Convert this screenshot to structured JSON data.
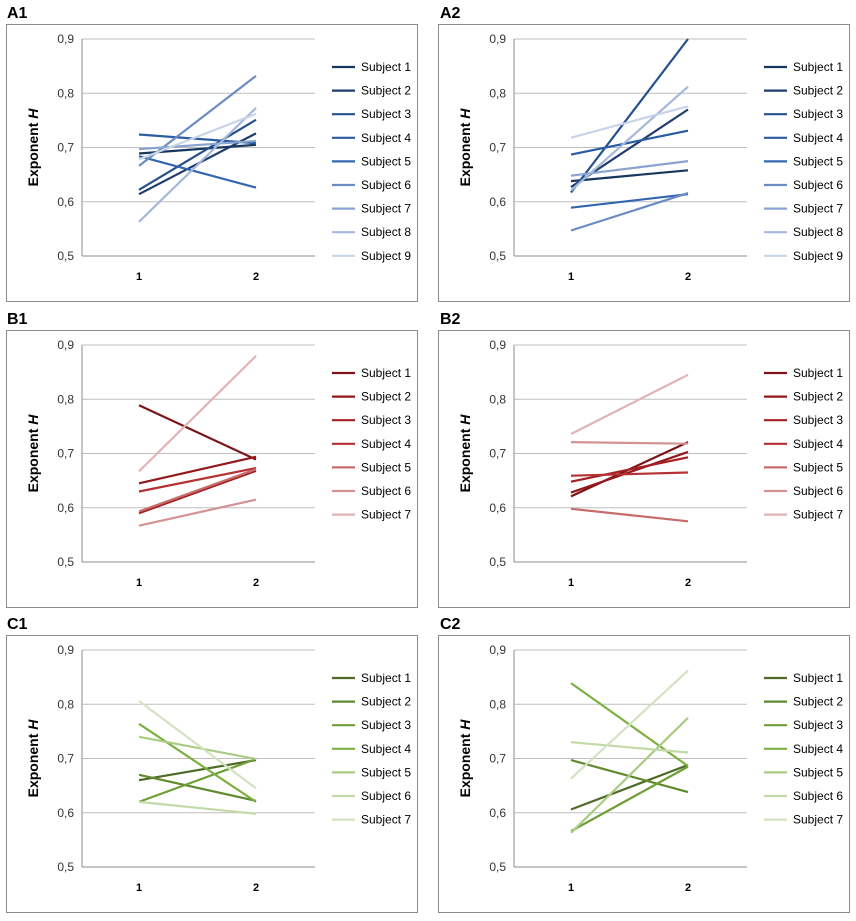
{
  "chart_data": [
    {
      "id": "A1",
      "label": "A1",
      "type": "line",
      "ylabel_main": "Exponent ",
      "ylabel_var": "H",
      "ylim": [
        0.5,
        0.9
      ],
      "yticks": [
        "0,5",
        "0,6",
        "0,7",
        "0,8",
        "0,9"
      ],
      "categories": [
        "1",
        "2"
      ],
      "series": [
        {
          "name": "Subject 1",
          "values": [
            0.689,
            0.705
          ],
          "color": "#17375e"
        },
        {
          "name": "Subject 2",
          "values": [
            0.614,
            0.726
          ],
          "color": "#1f3d6e"
        },
        {
          "name": "Subject 3",
          "values": [
            0.622,
            0.751
          ],
          "color": "#24508f"
        },
        {
          "name": "Subject 4",
          "values": [
            0.724,
            0.708
          ],
          "color": "#2a5ca1"
        },
        {
          "name": "Subject 5",
          "values": [
            0.684,
            0.626
          ],
          "color": "#3366b0"
        },
        {
          "name": "Subject 6",
          "values": [
            0.666,
            0.832
          ],
          "color": "#6b8cc2"
        },
        {
          "name": "Subject 7",
          "values": [
            0.697,
            0.712
          ],
          "color": "#8aa3cf"
        },
        {
          "name": "Subject 8",
          "values": [
            0.563,
            0.773
          ],
          "color": "#a3b8dc"
        },
        {
          "name": "Subject 9",
          "values": [
            0.678,
            0.762
          ],
          "color": "#c9d4ea"
        }
      ]
    },
    {
      "id": "A2",
      "label": "A2",
      "type": "line",
      "ylabel_main": "Exponent ",
      "ylabel_var": "H",
      "ylim": [
        0.5,
        0.9
      ],
      "yticks": [
        "0,5",
        "0,6",
        "0,7",
        "0,8",
        "0,9"
      ],
      "categories": [
        "1",
        "2"
      ],
      "series": [
        {
          "name": "Subject 1",
          "values": [
            0.638,
            0.658
          ],
          "color": "#17375e"
        },
        {
          "name": "Subject 2",
          "values": [
            0.627,
            0.77
          ],
          "color": "#1f3d6e"
        },
        {
          "name": "Subject 3",
          "values": [
            0.617,
            0.9
          ],
          "color": "#24508f"
        },
        {
          "name": "Subject 4",
          "values": [
            0.687,
            0.731
          ],
          "color": "#2a5ca1"
        },
        {
          "name": "Subject 5",
          "values": [
            0.589,
            0.614
          ],
          "color": "#3366b0"
        },
        {
          "name": "Subject 6",
          "values": [
            0.547,
            0.616
          ],
          "color": "#6b8cc2"
        },
        {
          "name": "Subject 7",
          "values": [
            0.648,
            0.675
          ],
          "color": "#8aa3cf"
        },
        {
          "name": "Subject 8",
          "values": [
            0.621,
            0.812
          ],
          "color": "#a3b8dc"
        },
        {
          "name": "Subject 9",
          "values": [
            0.718,
            0.776
          ],
          "color": "#c9d4ea"
        }
      ]
    },
    {
      "id": "B1",
      "label": "B1",
      "type": "line",
      "ylabel_main": "Exponent ",
      "ylabel_var": "H",
      "ylim": [
        0.5,
        0.9
      ],
      "yticks": [
        "0,5",
        "0,6",
        "0,7",
        "0,8",
        "0,9"
      ],
      "categories": [
        "1",
        "2"
      ],
      "series": [
        {
          "name": "Subject 1",
          "values": [
            0.789,
            0.689
          ],
          "color": "#7b1518"
        },
        {
          "name": "Subject 2",
          "values": [
            0.645,
            0.694
          ],
          "color": "#94191c"
        },
        {
          "name": "Subject 3",
          "values": [
            0.59,
            0.668
          ],
          "color": "#a42022"
        },
        {
          "name": "Subject 4",
          "values": [
            0.63,
            0.673
          ],
          "color": "#b53133"
        },
        {
          "name": "Subject 5",
          "values": [
            0.593,
            0.671
          ],
          "color": "#c76b6c"
        },
        {
          "name": "Subject 6",
          "values": [
            0.567,
            0.615
          ],
          "color": "#d49294"
        },
        {
          "name": "Subject 7",
          "values": [
            0.667,
            0.88
          ],
          "color": "#e2b3b4"
        }
      ]
    },
    {
      "id": "B2",
      "label": "B2",
      "type": "line",
      "ylabel_main": "Exponent ",
      "ylabel_var": "H",
      "ylim": [
        0.5,
        0.9
      ],
      "yticks": [
        "0,5",
        "0,6",
        "0,7",
        "0,8",
        "0,9"
      ],
      "categories": [
        "1",
        "2"
      ],
      "series": [
        {
          "name": "Subject 1",
          "values": [
            0.621,
            0.721
          ],
          "color": "#7b1518"
        },
        {
          "name": "Subject 2",
          "values": [
            0.628,
            0.703
          ],
          "color": "#94191c"
        },
        {
          "name": "Subject 3",
          "values": [
            0.648,
            0.693
          ],
          "color": "#a42022"
        },
        {
          "name": "Subject 4",
          "values": [
            0.659,
            0.665
          ],
          "color": "#b53133"
        },
        {
          "name": "Subject 5",
          "values": [
            0.598,
            0.575
          ],
          "color": "#c76b6c"
        },
        {
          "name": "Subject 6",
          "values": [
            0.721,
            0.718
          ],
          "color": "#d49294"
        },
        {
          "name": "Subject 7",
          "values": [
            0.736,
            0.845
          ],
          "color": "#e2b3b4"
        }
      ]
    },
    {
      "id": "C1",
      "label": "C1",
      "type": "line",
      "ylabel_main": "Exponent ",
      "ylabel_var": "H",
      "ylim": [
        0.5,
        0.9
      ],
      "yticks": [
        "0,5",
        "0,6",
        "0,7",
        "0,8",
        "0,9"
      ],
      "categories": [
        "1",
        "2"
      ],
      "series": [
        {
          "name": "Subject 1",
          "values": [
            0.66,
            0.697
          ],
          "color": "#4e6b26"
        },
        {
          "name": "Subject 2",
          "values": [
            0.67,
            0.622
          ],
          "color": "#5f8a2e"
        },
        {
          "name": "Subject 3",
          "values": [
            0.62,
            0.699
          ],
          "color": "#6e9e35"
        },
        {
          "name": "Subject 4",
          "values": [
            0.764,
            0.62
          ],
          "color": "#7cb040"
        },
        {
          "name": "Subject 5",
          "values": [
            0.74,
            0.699
          ],
          "color": "#a9cb84"
        },
        {
          "name": "Subject 6",
          "values": [
            0.62,
            0.598
          ],
          "color": "#c2d9a8"
        },
        {
          "name": "Subject 7",
          "values": [
            0.806,
            0.645
          ],
          "color": "#d3e3c1"
        }
      ]
    },
    {
      "id": "C2",
      "label": "C2",
      "type": "line",
      "ylabel_main": "Exponent ",
      "ylabel_var": "H",
      "ylim": [
        0.5,
        0.9
      ],
      "yticks": [
        "0,5",
        "0,6",
        "0,7",
        "0,8",
        "0,9"
      ],
      "categories": [
        "1",
        "2"
      ],
      "series": [
        {
          "name": "Subject 1",
          "values": [
            0.606,
            0.688
          ],
          "color": "#4e6b26"
        },
        {
          "name": "Subject 2",
          "values": [
            0.697,
            0.638
          ],
          "color": "#5f8a2e"
        },
        {
          "name": "Subject 3",
          "values": [
            0.566,
            0.685
          ],
          "color": "#6e9e35"
        },
        {
          "name": "Subject 4",
          "values": [
            0.839,
            0.686
          ],
          "color": "#7cb040"
        },
        {
          "name": "Subject 5",
          "values": [
            0.563,
            0.775
          ],
          "color": "#a9cb84"
        },
        {
          "name": "Subject 6",
          "values": [
            0.73,
            0.711
          ],
          "color": "#c2d9a8"
        },
        {
          "name": "Subject 7",
          "values": [
            0.663,
            0.862
          ],
          "color": "#d3e3c1"
        }
      ]
    }
  ]
}
